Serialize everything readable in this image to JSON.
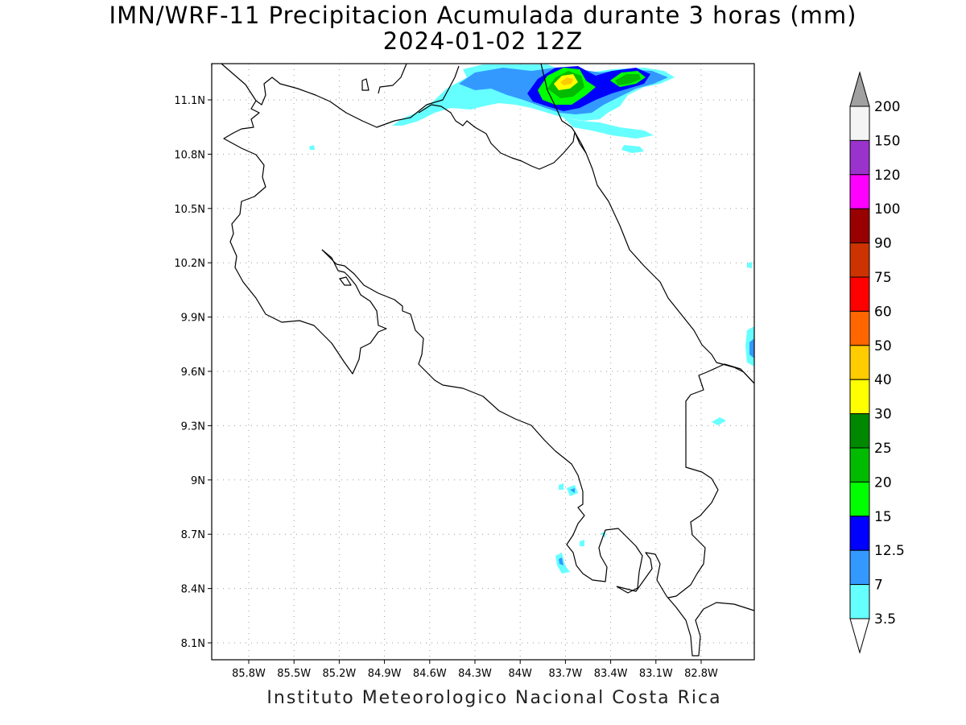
{
  "title_line1": "IMN/WRF-11 Precipitacion Acumulada durante 3 horas (mm)",
  "title_line2": "2024-01-02 12Z",
  "footer": "Instituto Meteorologico Nacional Costa Rica",
  "lon_labels": [
    "85.8W",
    "85.5W",
    "85.2W",
    "84.9W",
    "84.6W",
    "84.3W",
    "84W",
    "83.7W",
    "83.4W",
    "83.1W",
    "82.8W"
  ],
  "lat_labels": [
    "11.1N",
    "10.8N",
    "10.5N",
    "10.2N",
    "9.9N",
    "9.6N",
    "9.3N",
    "9N",
    "8.7N",
    "8.4N",
    "8.1N"
  ],
  "colorbar": {
    "labels": [
      "200",
      "150",
      "120",
      "100",
      "90",
      "75",
      "60",
      "50",
      "40",
      "30",
      "25",
      "20",
      "15",
      "12.5",
      "7",
      "3.5"
    ],
    "colors": [
      "#f4f4f4",
      "#9a33cc",
      "#ff00ff",
      "#990000",
      "#cc3300",
      "#ff0000",
      "#ff6600",
      "#ffcc00",
      "#ffff00",
      "#008800",
      "#00bb00",
      "#00ff00",
      "#0000ff",
      "#3399ff",
      "#66ffff"
    ],
    "over_color": "#a0a0a0",
    "under_color": "#ffffff"
  },
  "legend": {
    "colors": {
      "cyan": "#66ffff",
      "sky": "#3399ff",
      "blue": "#0000ff",
      "lime": "#00ff00",
      "green": "#00bb00",
      "yellow": "#ffff00",
      "gold": "#ffcc00"
    }
  }
}
